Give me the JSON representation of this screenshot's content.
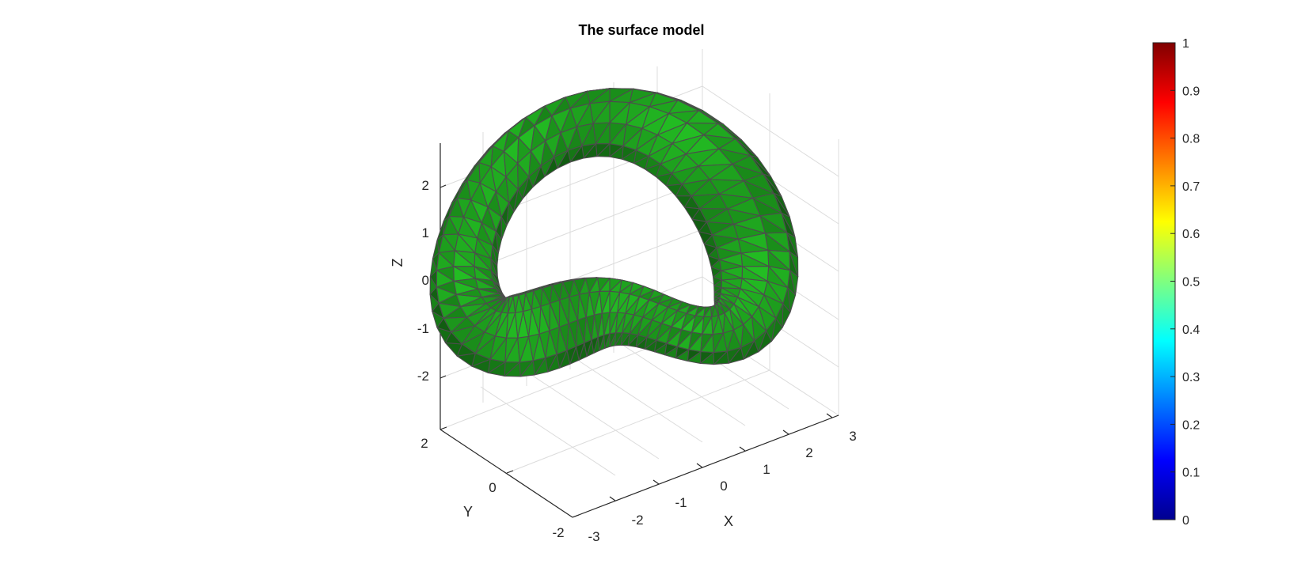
{
  "chart_data": {
    "type": "surface3d",
    "title": "The surface model",
    "xlabel": "X",
    "ylabel": "Y",
    "zlabel": "Z",
    "x_ticks": [
      "-3",
      "-2",
      "-1",
      "0",
      "1",
      "2",
      "3"
    ],
    "y_ticks": [
      "-2",
      "0",
      "2"
    ],
    "z_ticks": [
      "-2",
      "-1",
      "0",
      "1",
      "2"
    ],
    "xlim": [
      -3,
      3
    ],
    "ylim": [
      -2,
      2
    ],
    "zlim": [
      -3,
      3
    ],
    "grid": true,
    "surface_color": "#1fa81f",
    "edge_color": "#4d4d4d",
    "colorbar": {
      "colormap": "jet",
      "range": [
        0,
        1
      ],
      "ticks": [
        "0",
        "0.1",
        "0.2",
        "0.3",
        "0.4",
        "0.5",
        "0.6",
        "0.7",
        "0.8",
        "0.9",
        "1"
      ]
    }
  }
}
